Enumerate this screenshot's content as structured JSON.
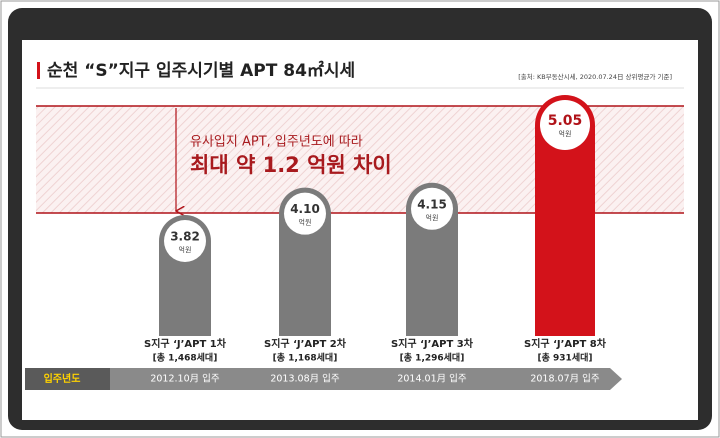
{
  "chart_data": {
    "type": "bar",
    "title": "순천 “S”지구 입주시기별 APT 84㎡시세",
    "source": "[출처: KB부동산시세, 2020.07.24日 상위평균가 기준]",
    "annotation": [
      "유사입지 APT, 입주년도에 따라",
      "최대 약 1.2 억원 차이"
    ],
    "categories": [
      "S지구 ‘J’APT 1차",
      "S지구 ‘J’APT 2차",
      "S지구 ‘J’APT 3차",
      "S지구 ‘J’APT 8차"
    ],
    "households": [
      "[총 1,468세대]",
      "[총 1,168세대]",
      "[총 1,296세대]",
      "[총 931세대]"
    ],
    "move_in": [
      "2012.10月 입주",
      "2013.08月 입주",
      "2014.01月 입주",
      "2018.07月 입주"
    ],
    "timeline_label": "입주년도",
    "values": [
      3.82,
      4.1,
      4.15,
      5.05
    ],
    "value_labels": [
      "3.82",
      "4.10",
      "4.15",
      "5.05"
    ],
    "unit": "억원",
    "colors": [
      "#7b7b7b",
      "#7b7b7b",
      "#7b7b7b",
      "#d3121a"
    ]
  }
}
